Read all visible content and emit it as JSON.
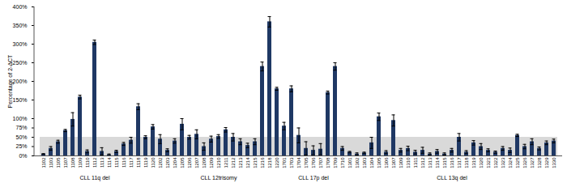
{
  "chart_data": {
    "type": "bar",
    "y_label": "Percentage of 2-ΔCT",
    "color": "#1f3864",
    "categories": [
      "1102",
      "1103",
      "1105",
      "1107",
      "1108",
      "1109",
      "1110",
      "1112",
      "1113",
      "1114",
      "1115",
      "1116",
      "1117",
      "1118",
      "1119",
      "1120",
      "1202",
      "1203",
      "1204",
      "1205",
      "1206",
      "1207",
      "1208",
      "1209",
      "1210",
      "1211",
      "1212",
      "1213",
      "1214",
      "1215",
      "1216",
      "1218",
      "1220",
      "1701",
      "1703",
      "1704",
      "1705",
      "1706",
      "1707",
      "1708",
      "1709",
      "1710",
      "1301",
      "1302",
      "1303",
      "1304",
      "1305",
      "1306",
      "1307",
      "1309",
      "1310",
      "1311",
      "1312",
      "1313",
      "1314",
      "1315",
      "1316",
      "1317",
      "1318",
      "1319",
      "1320",
      "1321",
      "1322",
      "1323",
      "1324",
      "1325",
      "1326",
      "1327",
      "1328",
      "1329",
      "1330"
    ],
    "values": [
      5,
      20,
      38,
      68,
      98,
      158,
      12,
      305,
      12,
      3,
      12,
      32,
      42,
      132,
      50,
      78,
      45,
      15,
      40,
      85,
      50,
      58,
      25,
      45,
      52,
      70,
      50,
      38,
      28,
      38,
      240,
      360,
      180,
      80,
      180,
      55,
      20,
      15,
      18,
      170,
      240,
      20,
      10,
      5,
      8,
      35,
      105,
      10,
      95,
      15,
      20,
      10,
      15,
      5,
      12,
      5,
      15,
      50,
      10,
      35,
      25,
      15,
      10,
      20,
      15,
      55,
      25,
      38,
      20,
      35,
      40
    ],
    "errors": [
      1,
      5,
      4,
      3,
      18,
      5,
      4,
      6,
      10,
      2,
      3,
      4,
      8,
      8,
      4,
      6,
      12,
      4,
      6,
      15,
      5,
      12,
      10,
      8,
      5,
      6,
      10,
      8,
      6,
      8,
      12,
      14,
      4,
      10,
      8,
      20,
      18,
      12,
      15,
      4,
      10,
      5,
      2,
      3,
      2,
      15,
      10,
      4,
      15,
      5,
      6,
      5,
      8,
      3,
      5,
      3,
      5,
      10,
      4,
      6,
      8,
      4,
      3,
      5,
      6,
      3,
      6,
      8,
      4,
      5,
      5
    ],
    "groups": [
      {
        "label": "CLL 11q del",
        "count": 16
      },
      {
        "label": "CLL 12trisomy",
        "count": 17
      },
      {
        "label": "CLL 17p del",
        "count": 9
      },
      {
        "label": "CLL 13q del",
        "count": 29
      }
    ],
    "shaded_range": [
      0,
      50
    ],
    "ylim": [
      0,
      400
    ],
    "yticks": [
      {
        "value": 0,
        "label": "0%"
      },
      {
        "value": 25,
        "label": "25%"
      },
      {
        "value": 50,
        "label": "50%"
      },
      {
        "value": 75,
        "label": "75%"
      },
      {
        "value": 100,
        "label": "100%"
      },
      {
        "value": 150,
        "label": "150%"
      },
      {
        "value": 200,
        "label": "200%"
      },
      {
        "value": 250,
        "label": "250%"
      },
      {
        "value": 300,
        "label": "300%"
      },
      {
        "value": 350,
        "label": "350%"
      },
      {
        "value": 400,
        "label": "400%"
      }
    ],
    "grid": false
  }
}
